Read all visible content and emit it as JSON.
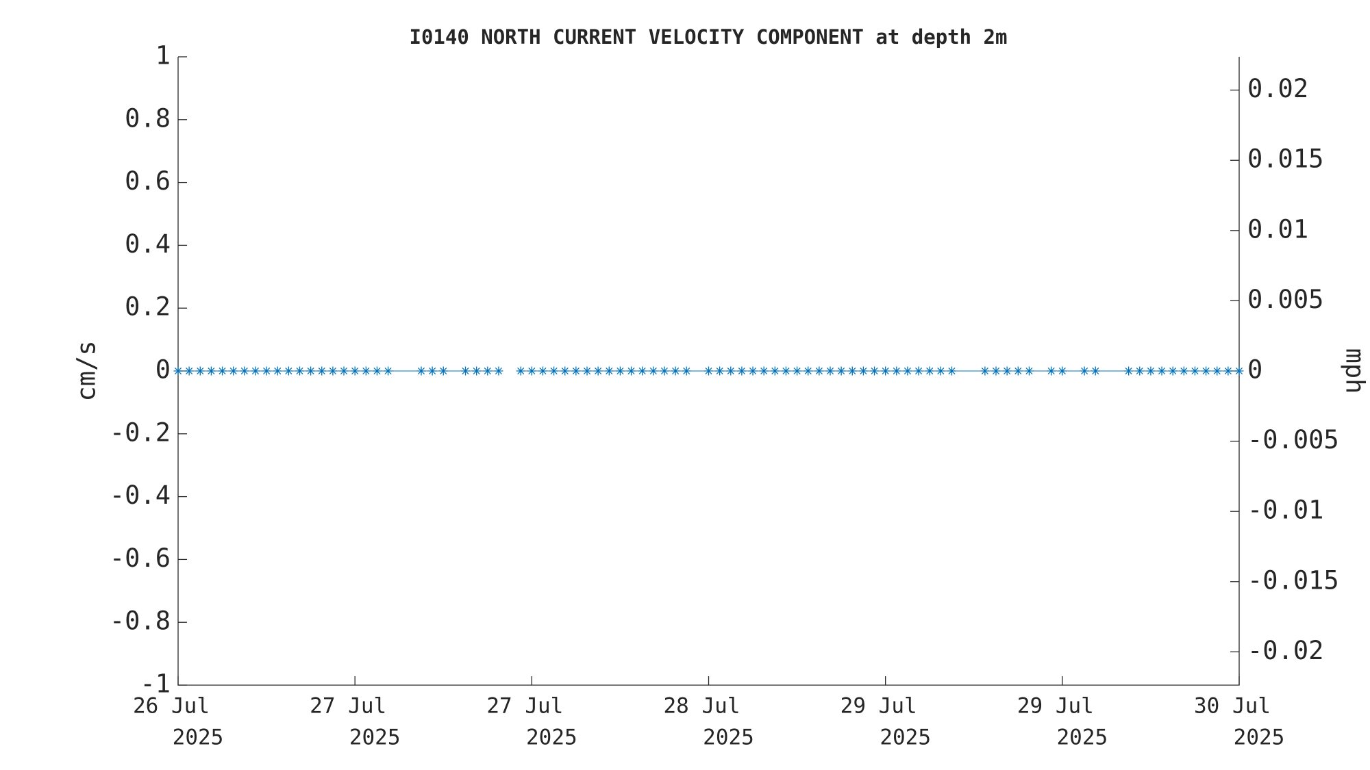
{
  "chart_data": {
    "type": "line",
    "title": "I0140 NORTH CURRENT VELOCITY COMPONENT at depth 2m",
    "ylabel": "cm/s",
    "y2label": "mph",
    "x": [
      0,
      1,
      2,
      3,
      4,
      5,
      6,
      7,
      8,
      9,
      10,
      11,
      12,
      13,
      14,
      15,
      16,
      17,
      18,
      19,
      22,
      23,
      24,
      26,
      27,
      28,
      29,
      30,
      31,
      32,
      33,
      34,
      35,
      36,
      37,
      38,
      39,
      40,
      41,
      42,
      43,
      44,
      45,
      46,
      48,
      49,
      50,
      51,
      52,
      53,
      54,
      55,
      56,
      57,
      58,
      59,
      60,
      61,
      62,
      63,
      64,
      65,
      66,
      67,
      68,
      69,
      70,
      73,
      74,
      75,
      76,
      77,
      79,
      80,
      82,
      83,
      86,
      87,
      88,
      89,
      90,
      91,
      92,
      93,
      94,
      95,
      96
    ],
    "series": [
      {
        "color": "#0072bd",
        "marker": "asterisk",
        "values": [
          0,
          0,
          0,
          0,
          0,
          0,
          0,
          0,
          0,
          0,
          0,
          0,
          0,
          0,
          0,
          0,
          0,
          0,
          0,
          0,
          0,
          0,
          0,
          0,
          0,
          0,
          0,
          null,
          0,
          0,
          0,
          0,
          0,
          0,
          0,
          0,
          0,
          0,
          0,
          0,
          0,
          0,
          0,
          0,
          0,
          0,
          0,
          0,
          0,
          0,
          0,
          0,
          0,
          0,
          0,
          0,
          0,
          0,
          0,
          0,
          0,
          0,
          0,
          0,
          0,
          0,
          0,
          0,
          0,
          0,
          0,
          0,
          0,
          0,
          0,
          0,
          0,
          0,
          0,
          0,
          0,
          0,
          0,
          0,
          0,
          0,
          0
        ]
      }
    ],
    "xlim": [
      0,
      96
    ],
    "xticks": [
      {
        "value": 0,
        "label": [
          "26 Jul",
          "2025"
        ]
      },
      {
        "value": 16,
        "label": [
          "27 Jul",
          "2025"
        ]
      },
      {
        "value": 32,
        "label": [
          "27 Jul",
          "2025"
        ]
      },
      {
        "value": 48,
        "label": [
          "28 Jul",
          "2025"
        ]
      },
      {
        "value": 64,
        "label": [
          "29 Jul",
          "2025"
        ]
      },
      {
        "value": 80,
        "label": [
          "29 Jul",
          "2025"
        ]
      },
      {
        "value": 96,
        "label": [
          "30 Jul",
          "2025"
        ]
      }
    ],
    "ylim": [
      -1,
      1
    ],
    "yticks": [
      -1,
      -0.8,
      -0.6,
      -0.4,
      -0.2,
      0,
      0.2,
      0.4,
      0.6,
      0.8,
      1
    ],
    "y2lim": [
      -0.02237,
      0.02237
    ],
    "y2ticks": [
      -0.02,
      -0.015,
      -0.01,
      -0.005,
      0,
      0.005,
      0.01,
      0.015,
      0.02
    ],
    "grid": false
  }
}
